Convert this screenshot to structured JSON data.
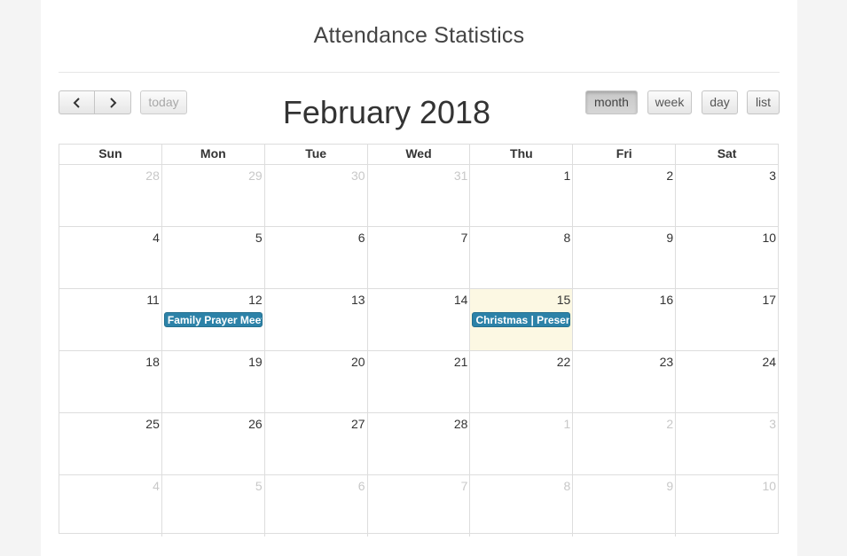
{
  "page": {
    "title": "Attendance Statistics"
  },
  "toolbar": {
    "today_label": "today",
    "view_buttons": [
      "month",
      "week",
      "day",
      "list"
    ],
    "active_view": "month"
  },
  "calendar": {
    "title": "February 2018",
    "day_headers": [
      "Sun",
      "Mon",
      "Tue",
      "Wed",
      "Thu",
      "Fri",
      "Sat"
    ],
    "weeks": [
      [
        {
          "n": "28",
          "other": true
        },
        {
          "n": "29",
          "other": true
        },
        {
          "n": "30",
          "other": true
        },
        {
          "n": "31",
          "other": true
        },
        {
          "n": "1"
        },
        {
          "n": "2"
        },
        {
          "n": "3"
        }
      ],
      [
        {
          "n": "4"
        },
        {
          "n": "5"
        },
        {
          "n": "6"
        },
        {
          "n": "7"
        },
        {
          "n": "8"
        },
        {
          "n": "9"
        },
        {
          "n": "10"
        }
      ],
      [
        {
          "n": "11"
        },
        {
          "n": "12",
          "event": "Family Prayer Meeting"
        },
        {
          "n": "13"
        },
        {
          "n": "14"
        },
        {
          "n": "15",
          "today": true,
          "event": "Christmas | Present"
        },
        {
          "n": "16"
        },
        {
          "n": "17"
        }
      ],
      [
        {
          "n": "18"
        },
        {
          "n": "19"
        },
        {
          "n": "20"
        },
        {
          "n": "21"
        },
        {
          "n": "22"
        },
        {
          "n": "23"
        },
        {
          "n": "24"
        }
      ],
      [
        {
          "n": "25"
        },
        {
          "n": "26"
        },
        {
          "n": "27"
        },
        {
          "n": "28"
        },
        {
          "n": "1",
          "other": true
        },
        {
          "n": "2",
          "other": true
        },
        {
          "n": "3",
          "other": true
        }
      ],
      [
        {
          "n": "4",
          "other": true
        },
        {
          "n": "5",
          "other": true
        },
        {
          "n": "6",
          "other": true
        },
        {
          "n": "7",
          "other": true
        },
        {
          "n": "8",
          "other": true
        },
        {
          "n": "9",
          "other": true
        },
        {
          "n": "10",
          "other": true
        }
      ]
    ]
  },
  "colors": {
    "event_bg": "#2c82a8",
    "today_bg": "#fcf8e3",
    "grid_border": "#dddddd"
  }
}
